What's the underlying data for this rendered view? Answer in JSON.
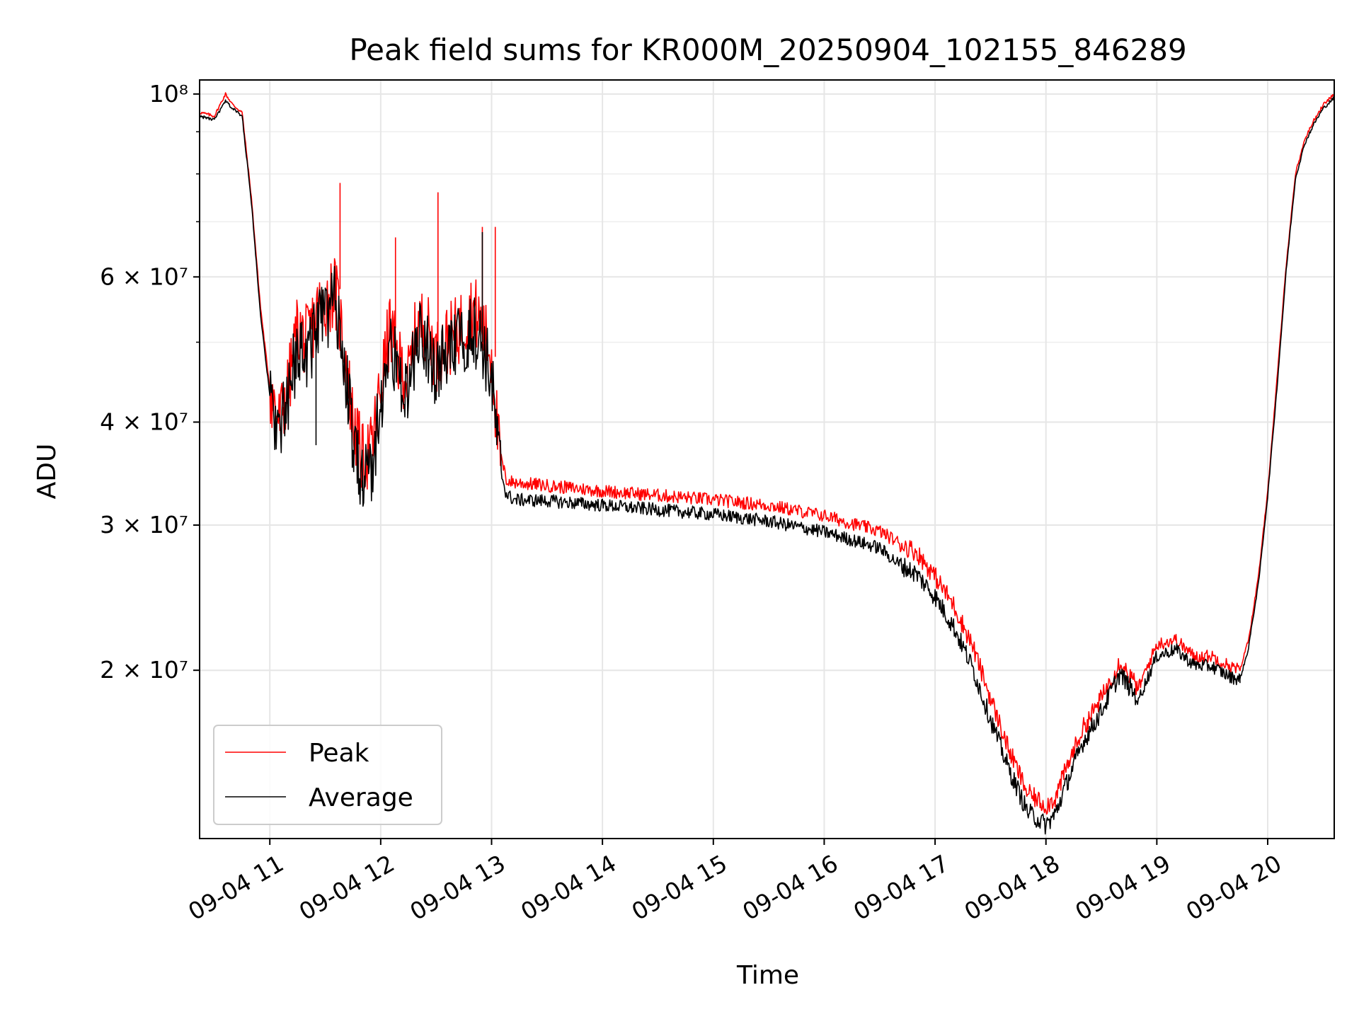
{
  "chart_data": {
    "type": "line",
    "title": "Peak field sums for KR000M_20250904_102155_846289",
    "xlabel": "Time",
    "ylabel": "ADU",
    "yscale": "log",
    "ylim": [
      12500000,
      104000000
    ],
    "xlim": [
      "2025-09-04 10:22",
      "2025-09-04 20:36"
    ],
    "grid": true,
    "legend_position": "lower-left",
    "x_ticks": [
      "09-04 11",
      "09-04 12",
      "09-04 13",
      "09-04 14",
      "09-04 15",
      "09-04 16",
      "09-04 17",
      "09-04 18",
      "09-04 19",
      "09-04 20"
    ],
    "y_ticks": [
      {
        "value": 20000000,
        "label": "2 × 10⁷"
      },
      {
        "value": 30000000,
        "label": "3 × 10⁷"
      },
      {
        "value": 40000000,
        "label": "4 × 10⁷"
      },
      {
        "value": 60000000,
        "label": "6 × 10⁷"
      },
      {
        "value": 100000000,
        "label": "10⁸"
      }
    ],
    "x": [
      "10:22",
      "10:30",
      "10:36",
      "10:40",
      "10:45",
      "10:50",
      "10:55",
      "11:00",
      "11:05",
      "11:10",
      "11:15",
      "11:20",
      "11:25",
      "11:30",
      "11:35",
      "11:40",
      "11:45",
      "11:50",
      "11:55",
      "12:00",
      "12:05",
      "12:10",
      "12:15",
      "12:20",
      "12:25",
      "12:30",
      "12:35",
      "12:40",
      "12:45",
      "12:50",
      "12:55",
      "13:00",
      "13:04",
      "13:08",
      "13:12",
      "13:30",
      "14:00",
      "14:30",
      "15:00",
      "15:30",
      "16:00",
      "16:30",
      "16:40",
      "16:50",
      "17:00",
      "17:10",
      "17:20",
      "17:30",
      "17:40",
      "17:50",
      "18:00",
      "18:05",
      "18:10",
      "18:20",
      "18:30",
      "18:40",
      "18:50",
      "19:00",
      "19:10",
      "19:20",
      "19:30",
      "19:40",
      "19:45",
      "19:50",
      "19:55",
      "20:00",
      "20:05",
      "20:10",
      "20:15",
      "20:20",
      "20:25",
      "20:30",
      "20:36"
    ],
    "series": [
      {
        "name": "Peak",
        "color": "#ff0000",
        "values": [
          95000000,
          94000000,
          100000000,
          97000000,
          95000000,
          75000000,
          55000000,
          44000000,
          40000000,
          44000000,
          52000000,
          50000000,
          54000000,
          56000000,
          58000000,
          50000000,
          40000000,
          36000000,
          37000000,
          44000000,
          52000000,
          47000000,
          45000000,
          53000000,
          52000000,
          48000000,
          50000000,
          51000000,
          53000000,
          55000000,
          52000000,
          48000000,
          37000000,
          34000000,
          33800000,
          33500000,
          33000000,
          32600000,
          32200000,
          31700000,
          30800000,
          29500000,
          28600000,
          27800000,
          26000000,
          24000000,
          21500000,
          18500000,
          16000000,
          14200000,
          13700000,
          14000000,
          15000000,
          17000000,
          18500000,
          20500000,
          19000000,
          21500000,
          21800000,
          20800000,
          20800000,
          20200000,
          20000000,
          22000000,
          26000000,
          33000000,
          45000000,
          62000000,
          80000000,
          88000000,
          93000000,
          97000000,
          100000000
        ],
        "spikes_peak": [
          {
            "x": "11:38",
            "value": 78000000
          },
          {
            "x": "12:31",
            "value": 76000000
          },
          {
            "x": "12:55",
            "value": 69000000
          },
          {
            "x": "13:02",
            "value": 69000000
          },
          {
            "x": "12:08",
            "value": 67000000
          }
        ]
      },
      {
        "name": "Average",
        "color": "#000000",
        "values": [
          94000000,
          93000000,
          98000000,
          96000000,
          94000000,
          74000000,
          54000000,
          43000000,
          39000000,
          42000000,
          50000000,
          48000000,
          52000000,
          54000000,
          56000000,
          48000000,
          38000000,
          34000000,
          35000000,
          42000000,
          50000000,
          45000000,
          43000000,
          51000000,
          50000000,
          46000000,
          48000000,
          49000000,
          51000000,
          52000000,
          50000000,
          45000000,
          36000000,
          33000000,
          32500000,
          32400000,
          32000000,
          31600000,
          31200000,
          30600000,
          29700000,
          28400000,
          27200000,
          26400000,
          24800000,
          22800000,
          20400000,
          17600000,
          15300000,
          13600000,
          13100000,
          13500000,
          14500000,
          16500000,
          18000000,
          20000000,
          18600000,
          21000000,
          21400000,
          20500000,
          20400000,
          19800000,
          19700000,
          21600000,
          25500000,
          32500000,
          44000000,
          61000000,
          79000000,
          87000000,
          92000000,
          96000000,
          99000000
        ],
        "spikes_peak": [
          {
            "x": "11:25",
            "value": 37500000
          },
          {
            "x": "11:50",
            "value": 33000000
          },
          {
            "x": "12:55",
            "value": 68000000
          },
          {
            "x": "19:45",
            "value": 19300000
          }
        ]
      }
    ]
  }
}
